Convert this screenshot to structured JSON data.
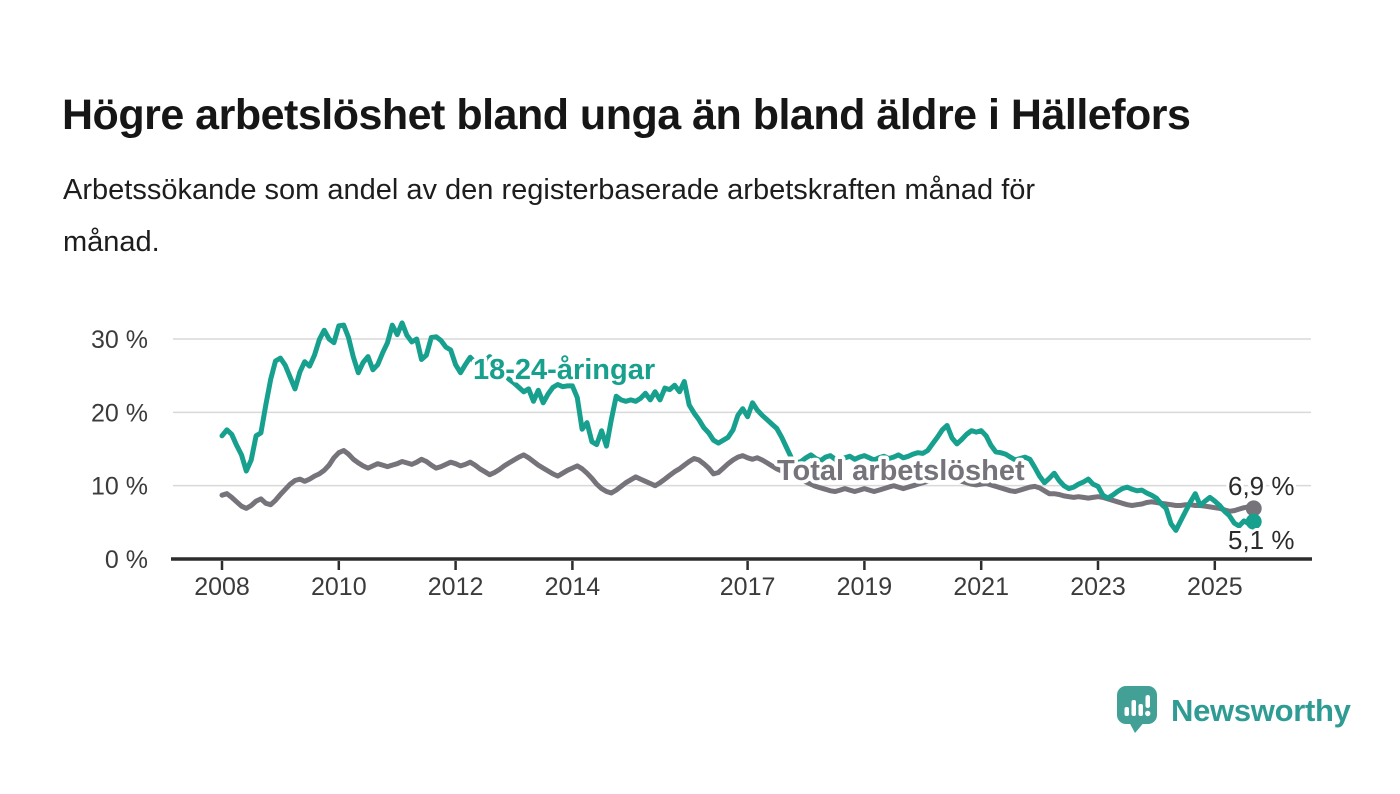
{
  "title": "Högre arbetslöshet bland unga än bland äldre i Hällefors",
  "subtitle_lines": [
    "Arbetssökande som andel av den registerbaserade arbetskraften månad för",
    "månad."
  ],
  "chart_data": {
    "type": "line",
    "x_interval": "monthly",
    "x_start": "2008-01",
    "x_end": "2025-09",
    "x_axis": {
      "ticks": [
        {
          "year": 2008,
          "label": "2008"
        },
        {
          "year": 2010,
          "label": "2010"
        },
        {
          "year": 2012,
          "label": "2012"
        },
        {
          "year": 2014,
          "label": "2014"
        },
        {
          "year": 2017,
          "label": "2017"
        },
        {
          "year": 2019,
          "label": "2019"
        },
        {
          "year": 2021,
          "label": "2021"
        },
        {
          "year": 2023,
          "label": "2023"
        },
        {
          "year": 2025,
          "label": "2025"
        }
      ]
    },
    "y_axis": {
      "range": [
        0,
        33
      ],
      "ticks": [
        {
          "value": 30,
          "label": "30 %"
        },
        {
          "value": 20,
          "label": "20 %"
        },
        {
          "value": 10,
          "label": "10 %"
        },
        {
          "value": 0,
          "label": "0 %"
        }
      ]
    },
    "grid": "horizontal",
    "legend_position": "inline-labels",
    "series": [
      {
        "name": "18-24-åringar",
        "color": "#17a08e",
        "end_label": "5,1 %",
        "end_value": 5.1,
        "values": [
          16.8,
          17.6,
          17.0,
          15.5,
          14.2,
          12.0,
          13.5,
          16.8,
          17.2,
          21.0,
          24.5,
          27.0,
          27.4,
          26.4,
          24.8,
          23.2,
          25.5,
          26.9,
          26.3,
          27.8,
          29.9,
          31.2,
          30.0,
          29.5,
          31.8,
          31.9,
          30.2,
          27.5,
          25.4,
          26.8,
          27.6,
          25.8,
          26.5,
          28.1,
          29.5,
          31.9,
          30.6,
          32.2,
          30.5,
          29.6,
          30.0,
          27.2,
          27.8,
          30.2,
          30.3,
          29.8,
          28.9,
          28.5,
          26.5,
          25.4,
          26.5,
          27.5,
          26.8,
          26.0,
          27.0,
          27.6,
          26.8,
          26.0,
          25.2,
          24.5,
          24.0,
          23.4,
          22.8,
          23.2,
          21.5,
          23.0,
          21.3,
          22.5,
          23.4,
          23.8,
          23.5,
          23.6,
          23.6,
          22.0,
          17.7,
          18.6,
          16.0,
          15.6,
          17.5,
          15.4,
          19.0,
          22.2,
          21.7,
          21.5,
          21.7,
          21.5,
          21.9,
          22.6,
          21.7,
          22.8,
          21.7,
          23.3,
          23.1,
          23.7,
          22.8,
          24.2,
          21.0,
          19.9,
          19.0,
          17.9,
          17.2,
          16.2,
          15.8,
          16.2,
          16.6,
          17.6,
          19.6,
          20.5,
          19.4,
          21.3,
          20.3,
          19.6,
          19.0,
          18.4,
          17.8,
          16.6,
          15.2,
          13.8,
          13.1,
          13.3,
          13.8,
          14.2,
          13.7,
          13.4,
          13.9,
          14.1,
          13.6,
          13.3,
          13.8,
          14.0,
          13.6,
          13.9,
          14.1,
          13.8,
          13.5,
          13.8,
          14.0,
          13.7,
          13.9,
          14.2,
          13.8,
          14.0,
          14.3,
          14.5,
          14.4,
          14.8,
          15.7,
          16.6,
          17.6,
          18.2,
          16.5,
          15.7,
          16.3,
          17.0,
          17.5,
          17.3,
          17.5,
          16.8,
          15.5,
          14.6,
          14.5,
          14.3,
          13.9,
          13.5,
          13.7,
          13.9,
          13.6,
          12.5,
          11.3,
          10.4,
          11.0,
          11.7,
          10.7,
          10.0,
          9.6,
          9.8,
          10.2,
          10.5,
          10.9,
          10.2,
          9.9,
          8.7,
          8.3,
          8.7,
          9.2,
          9.6,
          9.8,
          9.5,
          9.3,
          9.4,
          9.0,
          8.7,
          8.3,
          7.5,
          6.9,
          4.8,
          3.9,
          5.2,
          6.5,
          7.8,
          8.9,
          7.3,
          7.9,
          8.4,
          7.9,
          7.3,
          6.5,
          5.9,
          4.9,
          4.5,
          5.2,
          4.8,
          5.1
        ]
      },
      {
        "name": "Total arbetslöshet",
        "color": "#76737a",
        "end_label": "6,9 %",
        "end_value": 6.9,
        "values": [
          8.7,
          8.9,
          8.4,
          7.8,
          7.2,
          6.9,
          7.3,
          7.9,
          8.2,
          7.6,
          7.4,
          8.0,
          8.8,
          9.5,
          10.2,
          10.7,
          10.9,
          10.6,
          10.9,
          11.3,
          11.6,
          12.1,
          12.8,
          13.8,
          14.5,
          14.8,
          14.3,
          13.6,
          13.1,
          12.7,
          12.4,
          12.7,
          13.0,
          12.8,
          12.6,
          12.8,
          13.0,
          13.3,
          13.1,
          12.9,
          13.2,
          13.6,
          13.3,
          12.8,
          12.4,
          12.6,
          12.9,
          13.2,
          13.0,
          12.7,
          12.9,
          13.2,
          12.8,
          12.3,
          11.9,
          11.5,
          11.8,
          12.2,
          12.7,
          13.1,
          13.5,
          13.9,
          14.2,
          13.8,
          13.3,
          12.8,
          12.4,
          12.0,
          11.6,
          11.3,
          11.7,
          12.1,
          12.4,
          12.7,
          12.3,
          11.7,
          11.0,
          10.2,
          9.6,
          9.2,
          9.0,
          9.4,
          9.9,
          10.4,
          10.8,
          11.2,
          10.9,
          10.6,
          10.3,
          10.0,
          10.4,
          10.9,
          11.4,
          11.9,
          12.3,
          12.8,
          13.3,
          13.7,
          13.5,
          13.0,
          12.4,
          11.6,
          11.8,
          12.4,
          13.0,
          13.5,
          13.9,
          14.1,
          13.8,
          13.6,
          13.8,
          13.5,
          13.1,
          12.7,
          12.3,
          12.0,
          11.7,
          11.4,
          11.1,
          10.8,
          10.5,
          10.2,
          9.9,
          9.7,
          9.5,
          9.3,
          9.2,
          9.4,
          9.6,
          9.4,
          9.2,
          9.4,
          9.6,
          9.4,
          9.2,
          9.4,
          9.6,
          9.8,
          10.0,
          9.8,
          9.6,
          9.8,
          10.0,
          10.2,
          10.4,
          10.6,
          10.9,
          11.2,
          11.4,
          11.2,
          11.0,
          10.8,
          10.6,
          10.4,
          10.2,
          10.1,
          10.2,
          10.3,
          10.1,
          9.9,
          9.7,
          9.5,
          9.3,
          9.2,
          9.4,
          9.6,
          9.8,
          9.9,
          9.7,
          9.3,
          8.9,
          8.9,
          8.8,
          8.6,
          8.5,
          8.4,
          8.5,
          8.4,
          8.3,
          8.4,
          8.5,
          8.4,
          8.2,
          8.0,
          7.8,
          7.6,
          7.4,
          7.3,
          7.4,
          7.5,
          7.7,
          7.8,
          7.7,
          7.6,
          7.5,
          7.4,
          7.3,
          7.3,
          7.4,
          7.4,
          7.3,
          7.3,
          7.2,
          7.1,
          7.0,
          6.9,
          6.7,
          6.5,
          6.6,
          6.8,
          7.0,
          7.1,
          6.9
        ]
      }
    ]
  },
  "logo": {
    "text": "Newsworthy",
    "color": "#2f9c93",
    "icon_color": "#42a096",
    "icon": "newsworthy-speech-bubble-chart-icon"
  }
}
